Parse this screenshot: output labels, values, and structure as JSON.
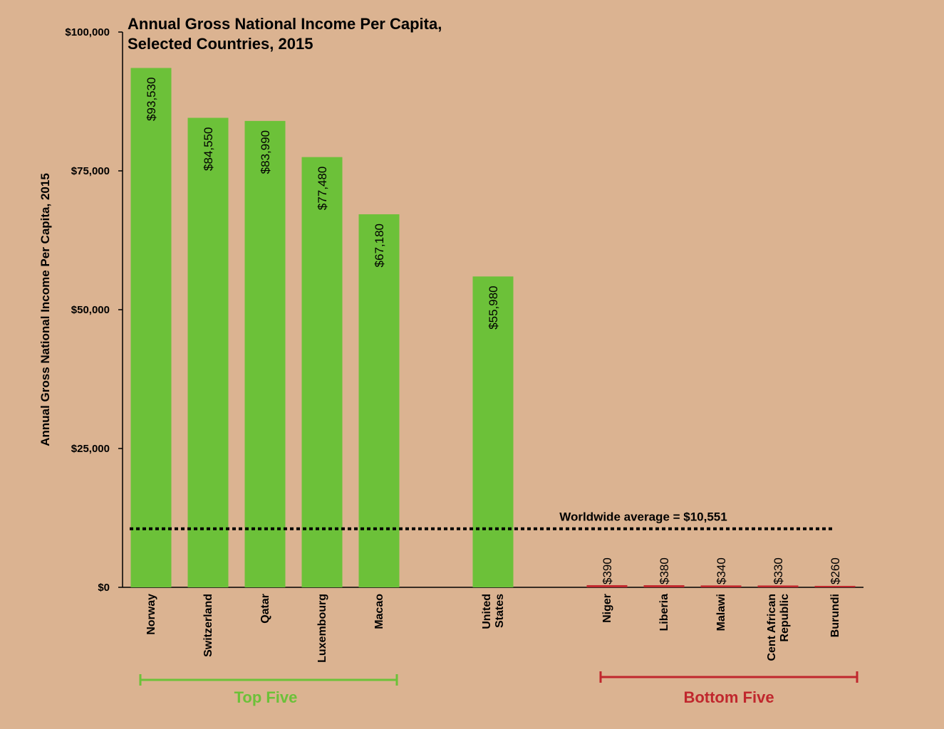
{
  "chart_data": {
    "type": "bar",
    "title_lines": [
      "Annual Gross National Income Per Capita,",
      "Selected Countries, 2015"
    ],
    "ylabel": "Annual Gross National Income Per Capita, 2015",
    "xlabel": "",
    "ylim": [
      0,
      100000
    ],
    "y_ticks": [
      {
        "value": 0,
        "label": "$0"
      },
      {
        "value": 25000,
        "label": "$25,000"
      },
      {
        "value": 50000,
        "label": "$50,000"
      },
      {
        "value": 75000,
        "label": "$75,000"
      },
      {
        "value": 100000,
        "label": "$100,000"
      }
    ],
    "grid": false,
    "bars": [
      {
        "category": [
          "Norway"
        ],
        "value": 93530,
        "label": "$93,530",
        "color": "#6cc139"
      },
      {
        "category": [
          "Switzerland"
        ],
        "value": 84550,
        "label": "$84,550",
        "color": "#6cc139"
      },
      {
        "category": [
          "Qatar"
        ],
        "value": 83990,
        "label": "$83,990",
        "color": "#6cc139"
      },
      {
        "category": [
          "Luxembourg"
        ],
        "value": 77480,
        "label": "$77,480",
        "color": "#6cc139"
      },
      {
        "category": [
          "Macao"
        ],
        "value": 67180,
        "label": "$67,180",
        "color": "#6cc139"
      },
      {
        "category": [
          "United",
          "States"
        ],
        "value": 55980,
        "label": "$55,980",
        "color": "#6cc139"
      },
      {
        "category": [
          "Niger"
        ],
        "value": 390,
        "label": "$390",
        "color": "#c0272d"
      },
      {
        "category": [
          "Liberia"
        ],
        "value": 380,
        "label": "$380",
        "color": "#c0272d"
      },
      {
        "category": [
          "Malawi"
        ],
        "value": 340,
        "label": "$340",
        "color": "#c0272d"
      },
      {
        "category": [
          "Cent African",
          "Republic"
        ],
        "value": 330,
        "label": "$330",
        "color": "#c0272d"
      },
      {
        "category": [
          "Burundi"
        ],
        "value": 260,
        "label": "$260",
        "color": "#c0272d"
      }
    ],
    "reference_line": {
      "value": 10551,
      "label": "Worldwide average = $10,551",
      "style": "dotted"
    },
    "groups": [
      {
        "label": "Top Five",
        "color": "#6cc139"
      },
      {
        "label": "Bottom Five",
        "color": "#c0272d"
      }
    ]
  }
}
